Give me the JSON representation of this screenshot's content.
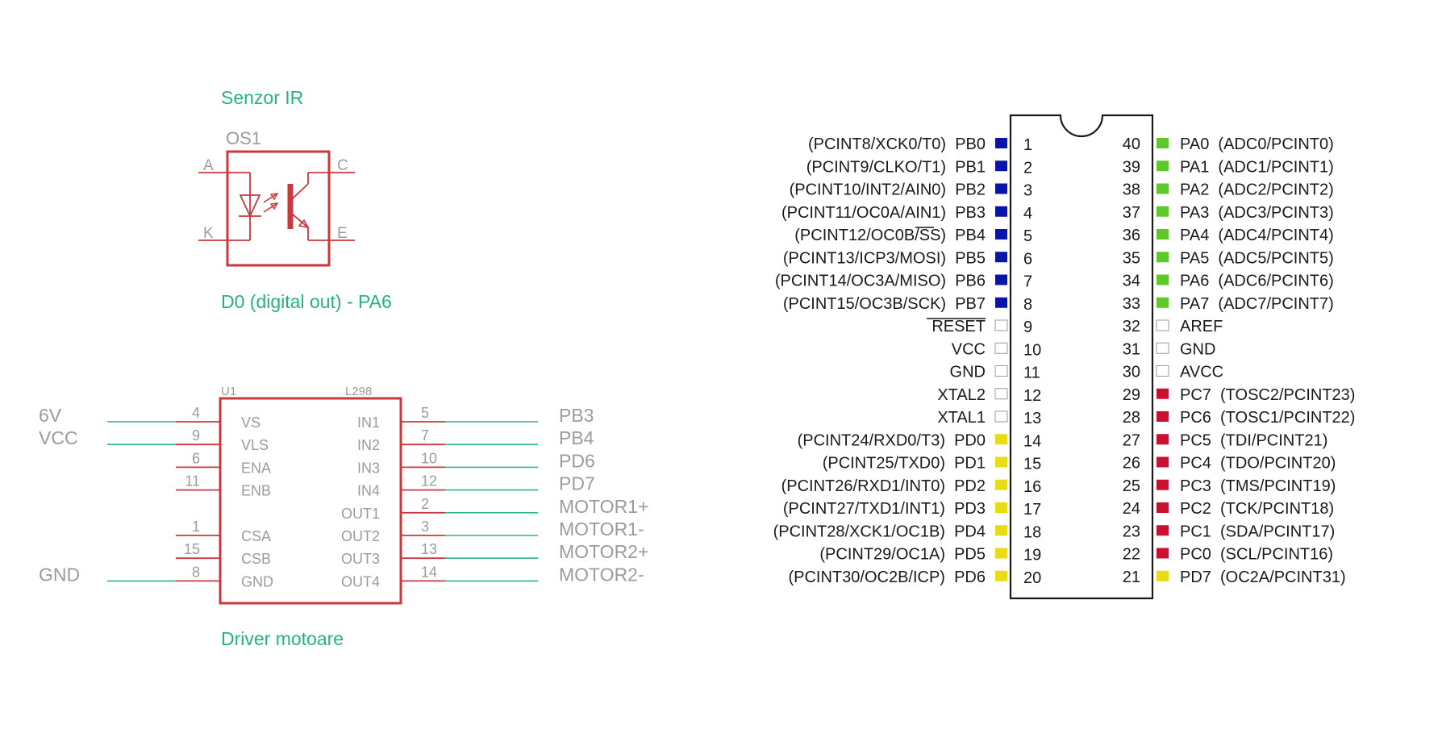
{
  "colors": {
    "title": "#26b37a",
    "symbol": "#c8383d",
    "wire": "#2bb58b",
    "muted_text": "#9b9b9b",
    "port_b": "#0a14a6",
    "port_a": "#5ec82a",
    "port_c": "#c81030",
    "port_d": "#e8dc16",
    "power": "#ffffff"
  },
  "ir_sensor": {
    "title": "Senzor IR",
    "designator": "OS1",
    "pin_a": "A",
    "pin_k": "K",
    "pin_c": "C",
    "pin_e": "E",
    "caption": "D0 (digital out) - PA6",
    "icons": [
      "led-icon",
      "phototransistor-icon",
      "light-arrow-icon"
    ]
  },
  "driver": {
    "designator": "U1",
    "part": "L298",
    "caption": "Driver motoare",
    "left_pins": [
      {
        "num": "4",
        "name": "VS",
        "net": "6V"
      },
      {
        "num": "9",
        "name": "VLS",
        "net": "VCC"
      },
      {
        "num": "6",
        "name": "ENA",
        "net": ""
      },
      {
        "num": "11",
        "name": "ENB",
        "net": ""
      },
      {
        "num": "1",
        "name": "CSA",
        "net": ""
      },
      {
        "num": "15",
        "name": "CSB",
        "net": ""
      },
      {
        "num": "8",
        "name": "GND",
        "net": "GND"
      }
    ],
    "right_pins": [
      {
        "num": "5",
        "name": "IN1",
        "net": "PB3"
      },
      {
        "num": "7",
        "name": "IN2",
        "net": "PB4"
      },
      {
        "num": "10",
        "name": "IN3",
        "net": "PD6"
      },
      {
        "num": "12",
        "name": "IN4",
        "net": "PD7"
      },
      {
        "num": "2",
        "name": "OUT1",
        "net": "MOTOR1+"
      },
      {
        "num": "3",
        "name": "OUT2",
        "net": "MOTOR1-"
      },
      {
        "num": "13",
        "name": "OUT3",
        "net": "MOTOR2+"
      },
      {
        "num": "14",
        "name": "OUT4",
        "net": "MOTOR2-"
      }
    ]
  },
  "mcu": {
    "left_pins": [
      {
        "label": "(PCINT8/XCK0/T0)  PB0",
        "num": "1",
        "port": "b"
      },
      {
        "label": "(PCINT9/CLKO/T1)  PB1",
        "num": "2",
        "port": "b"
      },
      {
        "label": "(PCINT10/INT2/AIN0)  PB2",
        "num": "3",
        "port": "b"
      },
      {
        "label": "(PCINT11/OC0A/AIN1)  PB3",
        "num": "4",
        "port": "b"
      },
      {
        "label": "(PCINT12/OC0B/SS)  PB4",
        "num": "5",
        "port": "b"
      },
      {
        "label": "(PCINT13/ICP3/MOSI)  PB5",
        "num": "6",
        "port": "b"
      },
      {
        "label": "(PCINT14/OC3A/MISO)  PB6",
        "num": "7",
        "port": "b"
      },
      {
        "label": "(PCINT15/OC3B/SCK)  PB7",
        "num": "8",
        "port": "b"
      },
      {
        "label": "RESET",
        "num": "9",
        "port": "power"
      },
      {
        "label": "VCC",
        "num": "10",
        "port": "power"
      },
      {
        "label": "GND",
        "num": "11",
        "port": "power"
      },
      {
        "label": "XTAL2",
        "num": "12",
        "port": "power"
      },
      {
        "label": "XTAL1",
        "num": "13",
        "port": "power"
      },
      {
        "label": "(PCINT24/RXD0/T3)  PD0",
        "num": "14",
        "port": "d"
      },
      {
        "label": "(PCINT25/TXD0)  PD1",
        "num": "15",
        "port": "d"
      },
      {
        "label": "(PCINT26/RXD1/INT0)  PD2",
        "num": "16",
        "port": "d"
      },
      {
        "label": "(PCINT27/TXD1/INT1)  PD3",
        "num": "17",
        "port": "d"
      },
      {
        "label": "(PCINT28/XCK1/OC1B)  PD4",
        "num": "18",
        "port": "d"
      },
      {
        "label": "(PCINT29/OC1A)  PD5",
        "num": "19",
        "port": "d"
      },
      {
        "label": "(PCINT30/OC2B/ICP)  PD6",
        "num": "20",
        "port": "d"
      }
    ],
    "right_pins": [
      {
        "label": "PA0  (ADC0/PCINT0)",
        "num": "40",
        "port": "a"
      },
      {
        "label": "PA1  (ADC1/PCINT1)",
        "num": "39",
        "port": "a"
      },
      {
        "label": "PA2  (ADC2/PCINT2)",
        "num": "38",
        "port": "a"
      },
      {
        "label": "PA3  (ADC3/PCINT3)",
        "num": "37",
        "port": "a"
      },
      {
        "label": "PA4  (ADC4/PCINT4)",
        "num": "36",
        "port": "a"
      },
      {
        "label": "PA5  (ADC5/PCINT5)",
        "num": "35",
        "port": "a"
      },
      {
        "label": "PA6  (ADC6/PCINT6)",
        "num": "34",
        "port": "a"
      },
      {
        "label": "PA7  (ADC7/PCINT7)",
        "num": "33",
        "port": "a"
      },
      {
        "label": "AREF",
        "num": "32",
        "port": "power"
      },
      {
        "label": "GND",
        "num": "31",
        "port": "power"
      },
      {
        "label": "AVCC",
        "num": "30",
        "port": "power"
      },
      {
        "label": "PC7  (TOSC2/PCINT23)",
        "num": "29",
        "port": "c"
      },
      {
        "label": "PC6  (TOSC1/PCINT22)",
        "num": "28",
        "port": "c"
      },
      {
        "label": "PC5  (TDI/PCINT21)",
        "num": "27",
        "port": "c"
      },
      {
        "label": "PC4  (TDO/PCINT20)",
        "num": "26",
        "port": "c"
      },
      {
        "label": "PC3  (TMS/PCINT19)",
        "num": "25",
        "port": "c"
      },
      {
        "label": "PC2  (TCK/PCINT18)",
        "num": "24",
        "port": "c"
      },
      {
        "label": "PC1  (SDA/PCINT17)",
        "num": "23",
        "port": "c"
      },
      {
        "label": "PC0  (SCL/PCINT16)",
        "num": "22",
        "port": "c"
      },
      {
        "label": "PD7  (OC2A/PCINT31)",
        "num": "21",
        "port": "d"
      }
    ]
  }
}
